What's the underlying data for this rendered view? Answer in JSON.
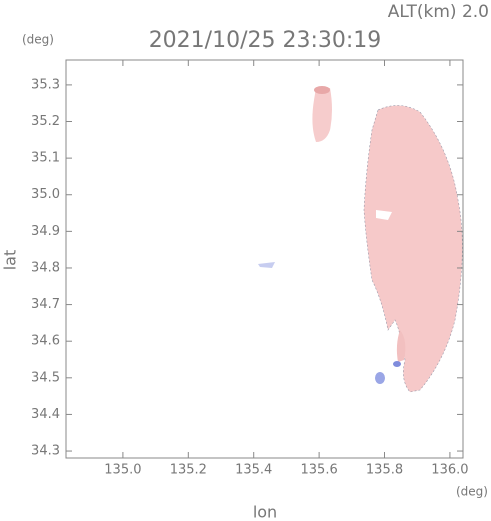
{
  "chart_data": {
    "type": "map",
    "altitude_label": "ALT(km)  2.0",
    "title": "2021/10/25 23:30:19",
    "x_label": "lon",
    "x_unit": "(deg)",
    "y_label": "lat",
    "y_unit": "(deg)",
    "xlim": [
      134.826,
      136.04
    ],
    "ylim": [
      34.281,
      35.368
    ],
    "xticks": [
      {
        "value": 135.0,
        "label": "135.0"
      },
      135.2,
      135.4,
      135.6,
      135.8,
      {
        "value": 136.0,
        "label": "136.0"
      }
    ],
    "yticks": [
      34.3,
      34.4,
      34.5,
      34.6,
      34.7,
      34.8,
      34.9,
      {
        "value": 35.0,
        "label": "35.0"
      },
      35.1,
      35.2,
      35.3
    ]
  }
}
